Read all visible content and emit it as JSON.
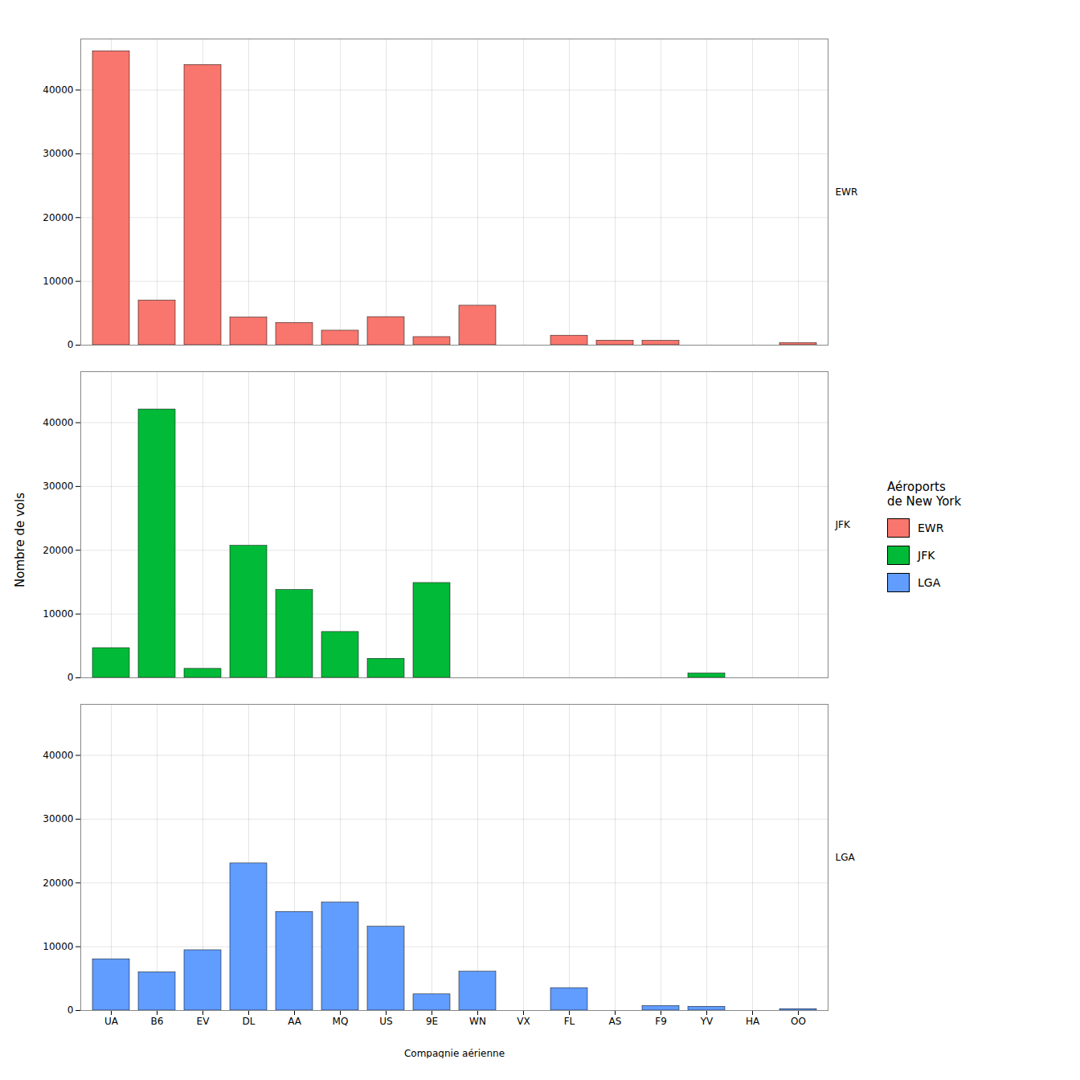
{
  "chart_data": {
    "type": "bar",
    "categories": [
      "UA",
      "B6",
      "EV",
      "DL",
      "AA",
      "MQ",
      "US",
      "9E",
      "WN",
      "VX",
      "FL",
      "AS",
      "F9",
      "YV",
      "HA",
      "OO"
    ],
    "series": [
      {
        "name": "EWR",
        "color": "#F8766D",
        "values": [
          46087,
          6997,
          43939,
          4342,
          3487,
          2276,
          4405,
          1268,
          6188,
          0,
          1490,
          714,
          685,
          0,
          0,
          337
        ]
      },
      {
        "name": "JFK",
        "color": "#00BA38",
        "values": [
          4662,
          42076,
          1408,
          20701,
          13783,
          7193,
          2995,
          14873,
          0,
          0,
          0,
          0,
          0,
          678,
          0,
          0
        ]
      },
      {
        "name": "LGA",
        "color": "#619CFF",
        "values": [
          8044,
          6002,
          9454,
          23067,
          15459,
          16928,
          13136,
          2541,
          6086,
          0,
          3519,
          0,
          714,
          601,
          0,
          232
        ]
      }
    ],
    "xlabel": "Compagnie aérienne",
    "ylabel": "Nombre de vols",
    "legend_title": "Aéroports\nde New York",
    "legend": "right",
    "ylim": [
      0,
      48000
    ],
    "yticks": [
      0,
      10000,
      20000,
      30000,
      40000
    ],
    "grid": true
  }
}
